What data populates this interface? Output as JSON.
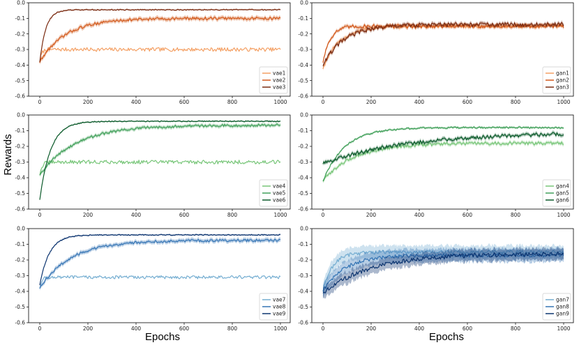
{
  "figure": {
    "ylabel": "Rewards",
    "xlabel_left": "Epochs",
    "xlabel_right": "Epochs"
  },
  "chart_data": [
    {
      "type": "line",
      "panel": "vae1-3",
      "xlim": [
        0,
        1000
      ],
      "ylim": [
        -0.6,
        0.0
      ],
      "xticks": [
        "0",
        "200",
        "400",
        "600",
        "800",
        "1000"
      ],
      "yticks": [
        "0.0",
        "-0.1",
        "-0.2",
        "-0.3",
        "-0.4",
        "-0.5",
        "-0.6"
      ],
      "legend_position": "lower right",
      "series": [
        {
          "name": "vae1",
          "color": "#f4a064",
          "start": -0.38,
          "plateau": -0.3,
          "tau": 8,
          "noise": 0.012,
          "band": 0.0
        },
        {
          "name": "vae2",
          "color": "#d2581a",
          "start": -0.38,
          "plateau": -0.1,
          "tau": 110,
          "noise": 0.009,
          "band": 0.012
        },
        {
          "name": "vae3",
          "color": "#7a2a10",
          "start": -0.38,
          "plateau": -0.045,
          "tau": 25,
          "noise": 0.003,
          "band": 0.004
        }
      ]
    },
    {
      "type": "line",
      "panel": "gan1-3",
      "xlim": [
        0,
        1000
      ],
      "ylim": [
        -0.6,
        0.0
      ],
      "xticks": [
        "0",
        "200",
        "400",
        "600",
        "800",
        "1000"
      ],
      "yticks": [
        "0.0",
        "-0.1",
        "-0.2",
        "-0.3",
        "-0.4",
        "-0.5",
        "-0.6"
      ],
      "legend_position": "lower right",
      "series": [
        {
          "name": "gan1",
          "color": "#f4a064",
          "start": -0.42,
          "plateau": -0.15,
          "tau": 70,
          "noise": 0.012,
          "band": 0.01
        },
        {
          "name": "gan2",
          "color": "#d2581a",
          "start": -0.38,
          "plateau": -0.15,
          "tau": 30,
          "noise": 0.012,
          "band": 0.01
        },
        {
          "name": "gan3",
          "color": "#7a2a10",
          "start": -0.4,
          "plateau": -0.14,
          "tau": 90,
          "noise": 0.014,
          "band": 0.01
        }
      ]
    },
    {
      "type": "line",
      "panel": "vae4-6",
      "xlim": [
        0,
        1000
      ],
      "ylim": [
        -0.6,
        0.0
      ],
      "xticks": [
        "0",
        "200",
        "400",
        "600",
        "800",
        "1000"
      ],
      "yticks": [
        "0.0",
        "-0.1",
        "-0.2",
        "-0.3",
        "-0.4",
        "-0.5",
        "-0.6"
      ],
      "legend_position": "lower right",
      "series": [
        {
          "name": "vae4",
          "color": "#78c679",
          "start": -0.38,
          "plateau": -0.3,
          "tau": 10,
          "noise": 0.012,
          "band": 0.0
        },
        {
          "name": "vae5",
          "color": "#41a05a",
          "start": -0.38,
          "plateau": -0.065,
          "tau": 150,
          "noise": 0.008,
          "band": 0.01
        },
        {
          "name": "vae6",
          "color": "#0b5a2a",
          "start": -0.54,
          "plateau": -0.04,
          "tau": 45,
          "noise": 0.003,
          "band": 0.004
        }
      ]
    },
    {
      "type": "line",
      "panel": "gan4-6",
      "xlim": [
        0,
        1000
      ],
      "ylim": [
        -0.6,
        0.0
      ],
      "xticks": [
        "0",
        "200",
        "400",
        "600",
        "800",
        "1000"
      ],
      "yticks": [
        "0.0",
        "-0.1",
        "-0.2",
        "-0.3",
        "-0.4",
        "-0.5",
        "-0.6"
      ],
      "legend_position": "lower right",
      "series": [
        {
          "name": "gan4",
          "color": "#78c679",
          "start": -0.42,
          "plateau": -0.18,
          "tau": 130,
          "noise": 0.01,
          "band": 0.01
        },
        {
          "name": "gan5",
          "color": "#41a05a",
          "start": -0.42,
          "plateau": -0.08,
          "tau": 90,
          "noise": 0.005,
          "band": 0.006
        },
        {
          "name": "gan6",
          "color": "#0b5a2a",
          "start": -0.31,
          "plateau": -0.11,
          "tau": 350,
          "noise": 0.012,
          "band": 0.01
        }
      ]
    },
    {
      "type": "line",
      "panel": "vae7-9",
      "xlim": [
        0,
        1000
      ],
      "ylim": [
        -0.6,
        0.0
      ],
      "xticks": [
        "0",
        "200",
        "400",
        "600",
        "800",
        "1000"
      ],
      "yticks": [
        "0.0",
        "-0.1",
        "-0.2",
        "-0.3",
        "-0.4",
        "-0.5",
        "-0.6"
      ],
      "legend_position": "lower right",
      "series": [
        {
          "name": "vae7",
          "color": "#74add1",
          "start": -0.38,
          "plateau": -0.31,
          "tau": 8,
          "noise": 0.01,
          "band": 0.0
        },
        {
          "name": "vae8",
          "color": "#3474b4",
          "start": -0.38,
          "plateau": -0.075,
          "tau": 130,
          "noise": 0.008,
          "band": 0.012
        },
        {
          "name": "vae9",
          "color": "#0d3570",
          "start": -0.36,
          "plateau": -0.04,
          "tau": 40,
          "noise": 0.003,
          "band": 0.004
        }
      ]
    },
    {
      "type": "line",
      "panel": "gan7-9",
      "xlim": [
        0,
        1000
      ],
      "ylim": [
        -0.6,
        0.0
      ],
      "xticks": [
        "0",
        "200",
        "400",
        "600",
        "800",
        "1000"
      ],
      "yticks": [
        "0.0",
        "-0.1",
        "-0.2",
        "-0.3",
        "-0.4",
        "-0.5",
        "-0.6"
      ],
      "legend_position": "lower right",
      "series": [
        {
          "name": "gan7",
          "color": "#74add1",
          "start": -0.4,
          "plateau": -0.15,
          "tau": 40,
          "noise": 0.012,
          "band": 0.04
        },
        {
          "name": "gan8",
          "color": "#3474b4",
          "start": -0.4,
          "plateau": -0.17,
          "tau": 90,
          "noise": 0.012,
          "band": 0.04
        },
        {
          "name": "gan9",
          "color": "#0d3570",
          "start": -0.41,
          "plateau": -0.16,
          "tau": 200,
          "noise": 0.014,
          "band": 0.035
        }
      ]
    }
  ]
}
